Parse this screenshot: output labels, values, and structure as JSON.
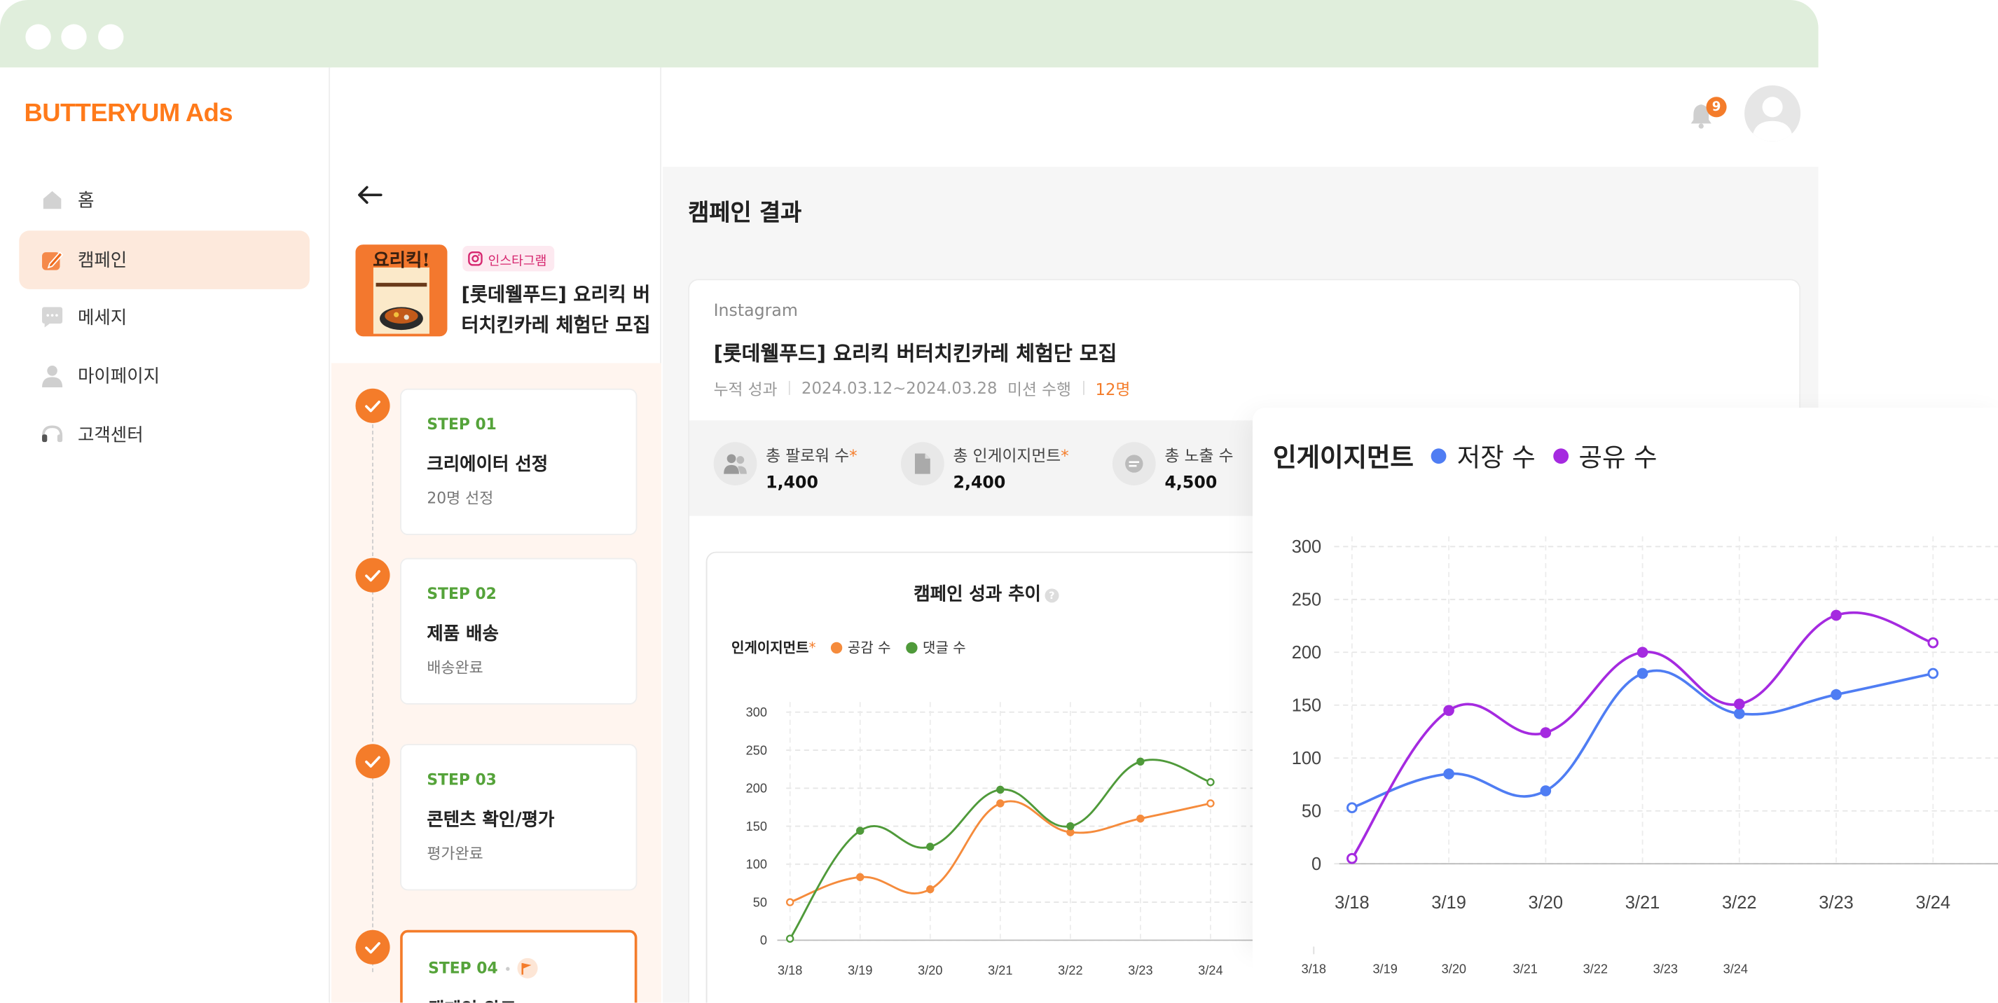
{
  "app": {
    "brand": "BUTTERYUM Ads"
  },
  "sidebar": {
    "items": [
      {
        "label": "홈",
        "icon": "home-icon",
        "active": false
      },
      {
        "label": "캠페인",
        "icon": "campaign-icon",
        "active": true
      },
      {
        "label": "메세지",
        "icon": "message-icon",
        "active": false
      },
      {
        "label": "마이페이지",
        "icon": "user-icon",
        "active": false
      },
      {
        "label": "고객센터",
        "icon": "headset-icon",
        "active": false
      }
    ]
  },
  "campaign_panel": {
    "platform_tag": "인스타그램",
    "title": "[롯데웰푸드] 요리킥 버터치킨카레 체험단 모집",
    "thumbnail_text": "요리킥!",
    "steps": [
      {
        "label": "STEP 01",
        "name": "크리에이터 선정",
        "sub": "20명 선정",
        "done": true
      },
      {
        "label": "STEP 02",
        "name": "제품 배송",
        "sub": "배송완료",
        "done": true
      },
      {
        "label": "STEP 03",
        "name": "콘텐츠 확인/평가",
        "sub": "평가완료",
        "done": true
      },
      {
        "label": "STEP 04",
        "name": "캠페인 완료",
        "sub": "",
        "done": true,
        "current": true
      }
    ]
  },
  "header": {
    "notification_count": "9"
  },
  "main": {
    "page_title": "캠페인 결과",
    "platform": "Instagram",
    "campaign_title": "[롯데웰푸드] 요리킥 버터치킨카레 체험단 모집",
    "meta": {
      "label": "누적 성과",
      "period": "2024.03.12~2024.03.28",
      "mission_label": "미션 수행",
      "mission_value": "12명"
    },
    "stats": [
      {
        "label": "총 팔로워 수",
        "value": "1,400",
        "required": true,
        "icon": "followers-icon"
      },
      {
        "label": "총 인게이지먼트",
        "value": "2,400",
        "required": true,
        "icon": "document-icon"
      },
      {
        "label": "총 노출 수",
        "value": "4,500",
        "required": false,
        "icon": "impression-icon"
      }
    ],
    "chart_title": "캠페인 성과 추이",
    "chart_legend": {
      "group": "인게이지먼트",
      "required_mark": "*",
      "series": [
        "공감 수",
        "댓글 수"
      ]
    }
  },
  "colors": {
    "accent": "#f47c2a",
    "green": "#55a33a",
    "blue": "#4f7df3",
    "purple": "#a52ae0"
  },
  "chart_data": [
    {
      "type": "line",
      "title": "캠페인 성과 추이",
      "x": [
        "3/18",
        "3/19",
        "3/20",
        "3/21",
        "3/22",
        "3/23",
        "3/24"
      ],
      "ylim": [
        0,
        300
      ],
      "yticks": [
        0,
        50,
        100,
        150,
        200,
        250,
        300
      ],
      "grid": true,
      "legend": "top-left",
      "series": [
        {
          "name": "공감 수",
          "color": "#f58b3c",
          "values": [
            50,
            83,
            67,
            180,
            142,
            160,
            180
          ]
        },
        {
          "name": "댓글 수",
          "color": "#4f9a3a",
          "values": [
            2,
            144,
            123,
            198,
            150,
            235,
            208
          ]
        }
      ]
    },
    {
      "type": "line",
      "title": "인게이지먼트",
      "x": [
        "3/18",
        "3/19",
        "3/20",
        "3/21",
        "3/22",
        "3/23",
        "3/24"
      ],
      "ylim": [
        0,
        300
      ],
      "yticks": [
        0,
        50,
        100,
        150,
        200,
        250,
        300
      ],
      "grid": true,
      "legend": "top",
      "series": [
        {
          "name": "저장 수",
          "color": "#4f7df3",
          "values": [
            53,
            85,
            69,
            180,
            142,
            160,
            180
          ]
        },
        {
          "name": "공유 수",
          "color": "#a52ae0",
          "values": [
            5,
            145,
            124,
            200,
            151,
            235,
            209
          ]
        }
      ]
    }
  ]
}
